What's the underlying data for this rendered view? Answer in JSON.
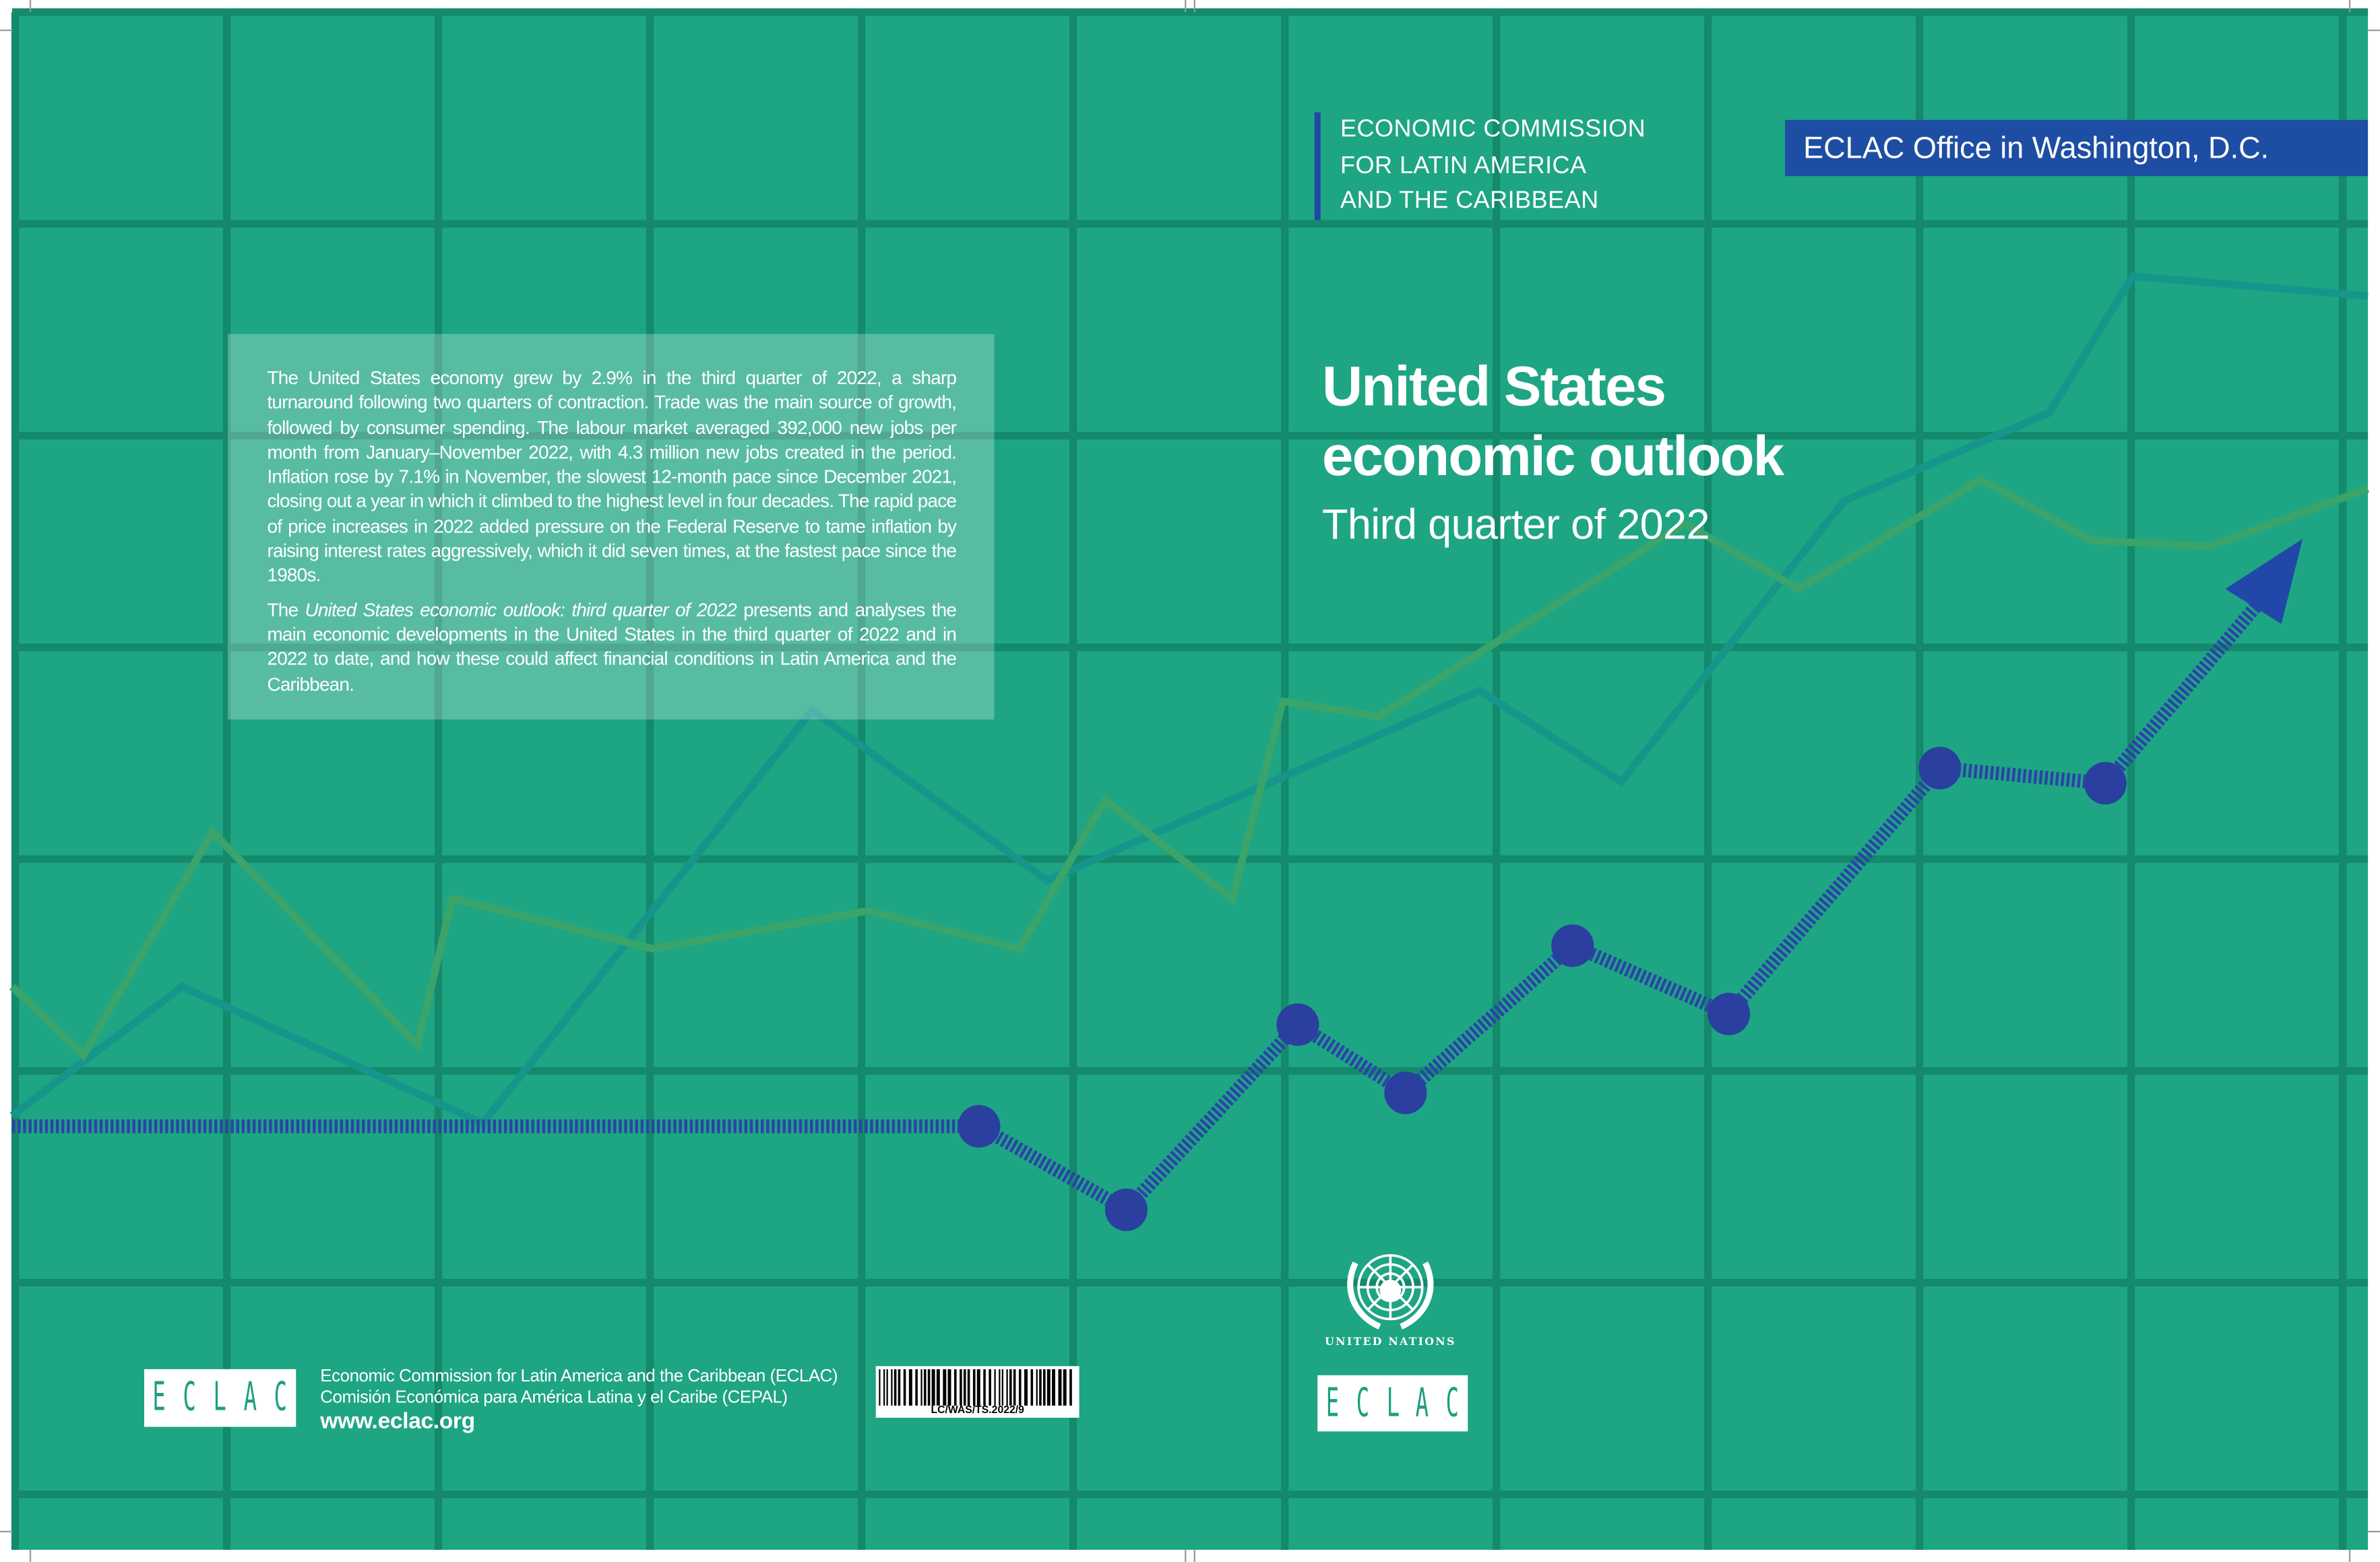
{
  "colors": {
    "background": "#1ea584",
    "grid": "#14896c",
    "teal_line": "#16968a",
    "green_line": "#3aa46a",
    "arrow": "#2a45a6",
    "office_band": "#1d4ea3"
  },
  "header": {
    "org_lines": [
      "ECONOMIC COMMISSION",
      "FOR LATIN AMERICA",
      "AND THE CARIBBEAN"
    ],
    "office": "ECLAC Office in Washington, D.C."
  },
  "cover": {
    "title_line1": "United States",
    "title_line2": "economic outlook",
    "subtitle": "Third quarter of 2022"
  },
  "summary": {
    "paragraph1": "The United States economy grew by 2.9% in the third quarter of 2022, a sharp turnaround following two quarters of contraction. Trade was the main source of growth, followed by consumer spending. The labour market averaged 392,000 new jobs per month from January–November 2022, with 4.3 million new jobs created in the period. Inflation rose by 7.1% in November, the slowest 12-month pace since December 2021, closing out a year in which it climbed to the highest level in four decades. The rapid pace of price increases in 2022 added pressure on the Federal Reserve to tame inflation by raising interest rates aggressively, which it did seven times, at the fastest pace since the 1980s.",
    "paragraph2_prefix": "The ",
    "paragraph2_italic": "United States economic outlook: third quarter of 2022",
    "paragraph2_suffix": " presents and analyses the main economic developments in the United States in the third quarter of 2022 and in 2022 to date, and how these could affect financial conditions in Latin America and the Caribbean."
  },
  "footer": {
    "logo_letters": [
      "E",
      "C",
      "L",
      "A",
      "C"
    ],
    "line_en": "Economic Commission for Latin America and the Caribbean (ECLAC)",
    "line_es": "Comisión Económica para América Latina y el Caribe (CEPAL)",
    "url": "www.eclac.org",
    "barcode_text": "LC/WAS/TS.2022/9",
    "un_label": "UNITED NATIONS",
    "un_icon": "un-emblem-icon"
  }
}
